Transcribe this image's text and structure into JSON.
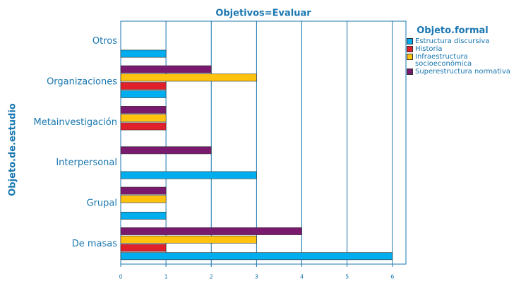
{
  "chart_data": {
    "type": "hbar",
    "title": "Objetivos=Evaluar",
    "y_label": "Objeto.de.estudio",
    "legend_title": "Objeto.formal",
    "categories": [
      "De masas",
      "Grupal",
      "Interpersonal",
      "Metainvestigación",
      "Organizaciones",
      "Otros"
    ],
    "series": [
      {
        "name": "Estructura discursiva",
        "color": "#00aeef",
        "values": [
          6,
          1,
          3,
          0,
          1,
          1
        ]
      },
      {
        "name": "Historia",
        "color": "#e0202b",
        "values": [
          1,
          0,
          0,
          1,
          1,
          0
        ]
      },
      {
        "name": "Infraestructura socioeconómica",
        "color": "#ffc20e",
        "values": [
          3,
          1,
          0,
          1,
          3,
          0
        ]
      },
      {
        "name": "Superestructura normativa",
        "color": "#7a1a6e",
        "values": [
          4,
          1,
          2,
          1,
          2,
          0
        ]
      }
    ],
    "xlim": [
      0,
      6.3
    ],
    "xticks": [
      0,
      1,
      2,
      3,
      4,
      5,
      6
    ],
    "grid": true,
    "legend": "right"
  }
}
